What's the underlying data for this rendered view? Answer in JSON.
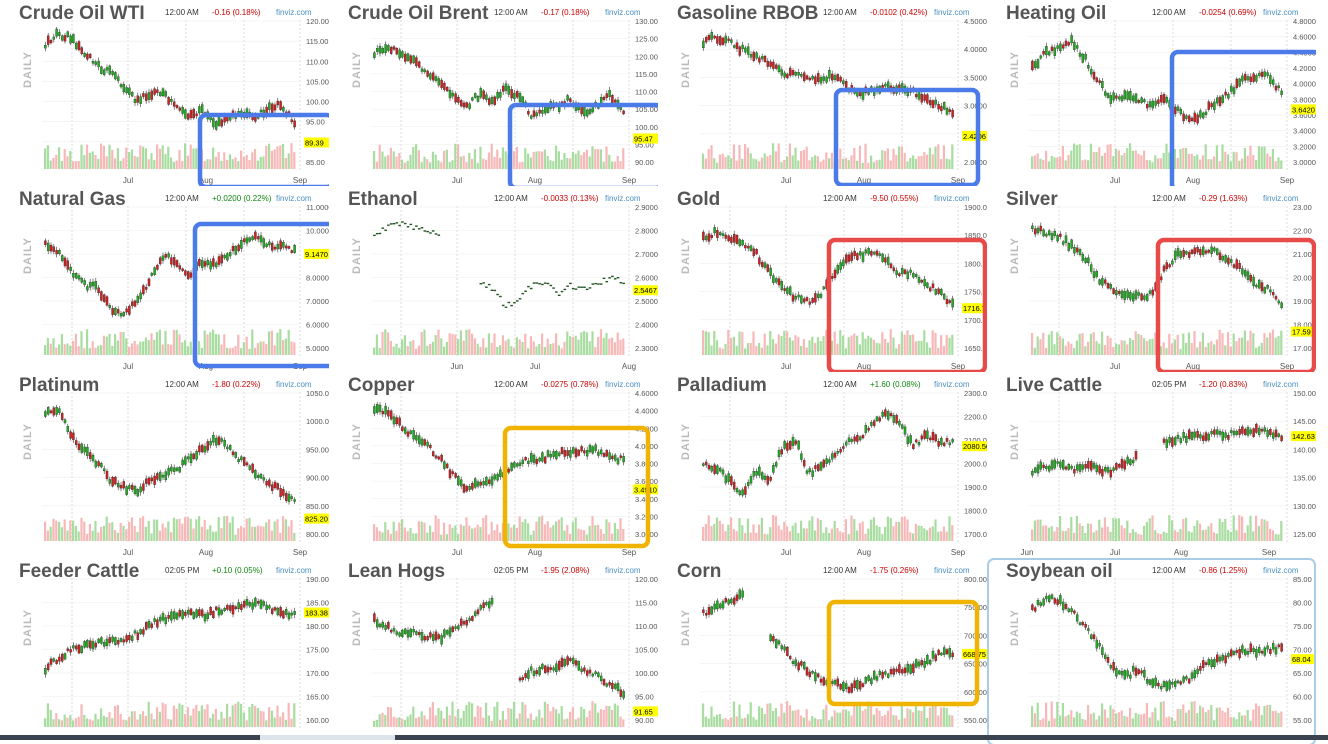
{
  "brand_label": "finviz.com",
  "daily_label": "DAILY",
  "colors": {
    "up": "#22aa22",
    "down": "#cc2222",
    "vol_up": "#a8dca0",
    "vol_down": "#f7b8b8",
    "price_tag": "#ffff00",
    "grid": "#cccccc"
  },
  "panels": [
    {
      "title": "Crude Oil WTI",
      "time": "12:00 AM",
      "change": "-0.16 (0.18%)",
      "dir": "down",
      "yticks": [
        "120.00",
        "115.00",
        "110.00",
        "105.00",
        "100.00",
        "95.00",
        "90.00",
        "85.00"
      ],
      "last": "89.39",
      "xlabels": [
        "Jul",
        "Aug",
        "Sep"
      ],
      "highlight": {
        "color": "#4a7be8"
      },
      "chart_data": {
        "type": "candlestick",
        "ylim": [
          83,
          127
        ],
        "last": 89.39,
        "path": [
          0.15,
          0.05,
          0.09,
          0.21,
          0.33,
          0.39,
          0.52,
          0.63,
          0.57,
          0.58,
          0.67,
          0.78,
          0.71,
          0.84,
          0.78,
          0.72,
          0.79,
          0.69,
          0.67,
          0.84
        ]
      }
    },
    {
      "title": "Crude Oil Brent",
      "time": "12:00 AM",
      "change": "-0.17 (0.18%)",
      "dir": "down",
      "yticks": [
        "130.00",
        "125.00",
        "120.00",
        "115.00",
        "110.00",
        "105.00",
        "100.00",
        "95.00",
        "90.00"
      ],
      "last": "95.47",
      "xlabels": [
        "Jul",
        "Aug",
        "Sep"
      ],
      "highlight": {
        "color": "#4a7be8"
      },
      "chart_data": {
        "type": "candlestick",
        "ylim": [
          88,
          131
        ],
        "last": 95.47,
        "path": [
          0.22,
          0.16,
          0.21,
          0.3,
          0.38,
          0.45,
          0.58,
          0.68,
          0.58,
          0.63,
          0.53,
          0.59,
          0.76,
          0.7,
          0.67,
          0.62,
          0.74,
          0.67,
          0.58,
          0.74
        ]
      }
    },
    {
      "title": "Gasoline RBOB",
      "time": "12:00 AM",
      "change": "-0.0102 (0.42%)",
      "dir": "down",
      "yticks": [
        "4.5000",
        "4.0000",
        "3.5000",
        "3.0000",
        "2.5000",
        "2.0000"
      ],
      "last": "2.4206",
      "xlabels": [
        "Jul",
        "Aug",
        "Sep"
      ],
      "highlight": {
        "color": "#4a7be8"
      },
      "chart_data": {
        "type": "candlestick",
        "ylim": [
          1.9,
          4.6
        ],
        "last": 2.4206,
        "path": [
          0.12,
          0.08,
          0.13,
          0.19,
          0.24,
          0.3,
          0.39,
          0.4,
          0.45,
          0.43,
          0.42,
          0.52,
          0.57,
          0.55,
          0.51,
          0.54,
          0.55,
          0.62,
          0.67,
          0.75
        ]
      }
    },
    {
      "title": "Heating Oil",
      "time": "12:00 AM",
      "change": "-0.0254 (0.69%)",
      "dir": "down",
      "yticks": [
        "4.8000",
        "4.6000",
        "4.4000",
        "4.2000",
        "4.0000",
        "3.8000",
        "3.6000",
        "3.4000",
        "3.2000",
        "3.0000"
      ],
      "last": "3.6420",
      "xlabels": [
        "Jul",
        "Aug",
        "Sep"
      ],
      "highlight": {
        "color": "#4a7be8"
      },
      "chart_data": {
        "type": "candlestick",
        "ylim": [
          2.9,
          4.85
        ],
        "last": 3.642,
        "path": [
          0.35,
          0.22,
          0.18,
          0.12,
          0.26,
          0.46,
          0.63,
          0.58,
          0.62,
          0.67,
          0.63,
          0.7,
          0.81,
          0.75,
          0.64,
          0.57,
          0.46,
          0.42,
          0.4,
          0.57
        ]
      }
    },
    {
      "title": "Natural Gas",
      "time": "12:00 AM",
      "change": "+0.0200 (0.22%)",
      "dir": "up",
      "yticks": [
        "11.0000",
        "10.0000",
        "9.0000",
        "8.0000",
        "7.0000",
        "6.0000",
        "5.0000"
      ],
      "last": "9.1470",
      "xlabels": [
        "Jul",
        "Aug",
        "Sep"
      ],
      "highlight": {
        "color": "#4a7be8"
      },
      "chart_data": {
        "type": "candlestick",
        "ylim": [
          4.9,
          11.2
        ],
        "last": 9.147,
        "path": [
          0.27,
          0.33,
          0.5,
          0.62,
          0.64,
          0.82,
          0.88,
          0.75,
          0.57,
          0.36,
          0.42,
          0.53,
          0.41,
          0.43,
          0.35,
          0.26,
          0.21,
          0.26,
          0.29,
          0.31
        ]
      }
    },
    {
      "title": "Ethanol",
      "time": "12:00 AM",
      "change": "-0.0033 (0.13%)",
      "dir": "down",
      "yticks": [
        "2.9000",
        "2.8000",
        "2.7000",
        "2.6000",
        "2.5000",
        "2.4000",
        "2.3000"
      ],
      "last": "2.5467",
      "xlabels": [
        "Jun",
        "Jul",
        "Aug"
      ],
      "highlight": null,
      "chart_data": {
        "type": "dash",
        "ylim": [
          2.28,
          2.92
        ],
        "last": 2.5467,
        "path": [
          0.2,
          0.12,
          0.08,
          0.12,
          0.16,
          0.18,
          null,
          null,
          0.6,
          0.64,
          0.8,
          0.76,
          0.62,
          0.6,
          0.7,
          0.62,
          0.66,
          0.6,
          0.56,
          0.59
        ]
      }
    },
    {
      "title": "Gold",
      "time": "12:00 AM",
      "change": "-9.50 (0.55%)",
      "dir": "down",
      "yticks": [
        "1900.00",
        "1850.00",
        "1800.00",
        "1750.00",
        "1700.00",
        "1650.00"
      ],
      "last": "1716.70",
      "xlabels": [
        "Jul",
        "Aug",
        "Sep"
      ],
      "highlight": {
        "color": "#e84a4a"
      },
      "chart_data": {
        "type": "candlestick",
        "ylim": [
          1640,
          1905
        ],
        "last": 1716.7,
        "path": [
          0.2,
          0.16,
          0.21,
          0.27,
          0.34,
          0.5,
          0.64,
          0.72,
          0.77,
          0.7,
          0.52,
          0.38,
          0.36,
          0.32,
          0.42,
          0.52,
          0.51,
          0.62,
          0.68,
          0.78
        ]
      }
    },
    {
      "title": "Silver",
      "time": "12:00 AM",
      "change": "-0.29 (1.63%)",
      "dir": "down",
      "yticks": [
        "23.00",
        "22.00",
        "21.00",
        "20.00",
        "19.00",
        "18.00",
        "17.00"
      ],
      "last": "17.59",
      "xlabels": [
        "Jul",
        "Aug",
        "Sep"
      ],
      "highlight": {
        "color": "#e84a4a"
      },
      "chart_data": {
        "type": "candlestick",
        "ylim": [
          16.8,
          23.2
        ],
        "last": 17.59,
        "path": [
          0.12,
          0.16,
          0.2,
          0.28,
          0.38,
          0.56,
          0.65,
          0.7,
          0.72,
          0.7,
          0.5,
          0.36,
          0.34,
          0.3,
          0.33,
          0.42,
          0.48,
          0.6,
          0.66,
          0.8
        ]
      }
    },
    {
      "title": "Platinum",
      "time": "12:00 AM",
      "change": "-1.80 (0.22%)",
      "dir": "down",
      "yticks": [
        "1050.00",
        "1000.00",
        "950.00",
        "900.00",
        "850.00",
        "800.00"
      ],
      "last": "825.20",
      "xlabels": [
        "Jul",
        "Aug",
        "Sep"
      ],
      "highlight": null,
      "chart_data": {
        "type": "candlestick",
        "ylim": [
          795,
          1055
        ],
        "last": 825.2,
        "path": [
          0.12,
          0.1,
          0.3,
          0.45,
          0.55,
          0.7,
          0.76,
          0.8,
          0.7,
          0.66,
          0.6,
          0.52,
          0.42,
          0.34,
          0.4,
          0.54,
          0.63,
          0.72,
          0.8,
          0.88
        ]
      }
    },
    {
      "title": "Copper",
      "time": "12:00 AM",
      "change": "-0.0275 (0.78%)",
      "dir": "down",
      "yticks": [
        "4.6000",
        "4.4000",
        "4.2000",
        "4.0000",
        "3.8000",
        "3.6000",
        "3.4000",
        "3.2000",
        "3.0000"
      ],
      "last": "3.4910",
      "xlabels": [
        "Jul",
        "Aug",
        "Sep"
      ],
      "highlight": {
        "color": "#f0b400"
      },
      "chart_data": {
        "type": "candlestick",
        "ylim": [
          2.95,
          4.62
        ],
        "last": 3.491,
        "path": [
          0.08,
          0.12,
          0.22,
          0.32,
          0.4,
          0.5,
          0.66,
          0.76,
          0.72,
          0.68,
          0.62,
          0.54,
          0.52,
          0.5,
          0.46,
          0.46,
          0.44,
          0.44,
          0.5,
          0.52
        ]
      }
    },
    {
      "title": "Palladium",
      "time": "12:00 AM",
      "change": "+1.60 (0.08%)",
      "dir": "up",
      "yticks": [
        "2300.00",
        "2200.00",
        "2100.00",
        "2000.00",
        "1900.00",
        "1800.00",
        "1700.00"
      ],
      "last": "2080.50",
      "xlabels": [
        "Jul",
        "Aug",
        "Sep"
      ],
      "highlight": null,
      "chart_data": {
        "type": "candlestick",
        "ylim": [
          1690,
          2310
        ],
        "last": 2080.5,
        "path": [
          0.55,
          0.6,
          0.7,
          0.82,
          0.62,
          0.7,
          0.42,
          0.34,
          0.64,
          0.58,
          0.48,
          0.36,
          0.32,
          0.18,
          0.1,
          0.22,
          0.4,
          0.3,
          0.36,
          0.36
        ]
      }
    },
    {
      "title": "Live Cattle",
      "time": "02:05 PM",
      "change": "-1.20 (0.83%)",
      "dir": "down",
      "yticks": [
        "150.00",
        "145.00",
        "140.00",
        "135.00",
        "130.00",
        "125.00"
      ],
      "last": "142.63",
      "xlabels": [
        "Jun",
        "Jul",
        "Aug",
        "Sep"
      ],
      "highlight": null,
      "chart_data": {
        "type": "candlestick",
        "ylim": [
          123,
          151
        ],
        "last": 142.63,
        "path": [
          0.62,
          0.58,
          0.55,
          0.6,
          0.58,
          0.6,
          0.62,
          0.55,
          0.5,
          null,
          0.36,
          0.34,
          0.32,
          0.32,
          0.28,
          0.3,
          0.28,
          0.26,
          0.29,
          0.31
        ]
      }
    },
    {
      "title": "Feeder Cattle",
      "time": "02:05 PM",
      "change": "+0.10 (0.05%)",
      "dir": "up",
      "yticks": [
        "190.00",
        "185.00",
        "180.00",
        "175.00",
        "170.00",
        "165.00",
        "160.00"
      ],
      "last": "183.38",
      "xlabels": [],
      "highlight": null,
      "chart_data": {
        "type": "candlestick",
        "ylim": [
          158,
          191
        ],
        "last": 183.38,
        "path": [
          0.72,
          0.62,
          0.56,
          0.52,
          0.5,
          0.48,
          0.46,
          0.42,
          0.34,
          0.28,
          0.26,
          0.24,
          0.26,
          0.22,
          0.2,
          0.18,
          0.14,
          0.18,
          0.24,
          0.24
        ]
      }
    },
    {
      "title": "Lean Hogs",
      "time": "02:05 PM",
      "change": "-1.95 (2.08%)",
      "dir": "down",
      "yticks": [
        "120.00",
        "115.00",
        "110.00",
        "105.00",
        "100.00",
        "95.00",
        "90.00"
      ],
      "last": "91.65",
      "xlabels": [],
      "highlight": null,
      "chart_data": {
        "type": "candlestick",
        "ylim": [
          89.5,
          121
        ],
        "last": 91.65,
        "path": [
          0.3,
          0.36,
          0.42,
          0.4,
          0.44,
          0.46,
          0.36,
          0.3,
          0.22,
          0.12,
          null,
          0.8,
          0.74,
          0.72,
          0.7,
          0.66,
          0.72,
          0.78,
          0.86,
          0.92
        ]
      }
    },
    {
      "title": "Corn",
      "time": "12:00 AM",
      "change": "-1.75 (0.26%)",
      "dir": "down",
      "yticks": [
        "800.00",
        "750.00",
        "700.00",
        "650.00",
        "600.00",
        "550.00"
      ],
      "last": "668.75",
      "xlabels": [],
      "highlight": {
        "color": "#f0b400"
      },
      "chart_data": {
        "type": "candlestick",
        "ylim": [
          545,
          805
        ],
        "last": 668.75,
        "path": [
          0.24,
          0.18,
          0.12,
          0.08,
          null,
          0.42,
          0.54,
          0.66,
          0.74,
          0.8,
          0.84,
          0.9,
          0.86,
          0.8,
          0.76,
          0.74,
          0.7,
          0.66,
          0.58,
          0.6
        ]
      }
    },
    {
      "title": "Soybean oil",
      "time": "12:00 AM",
      "change": "-0.86 (1.25%)",
      "dir": "down",
      "yticks": [
        "85.00",
        "80.00",
        "75.00",
        "70.00",
        "65.00",
        "60.00",
        "55.00"
      ],
      "last": "68.04",
      "xlabels": [],
      "highlight": {
        "color": "#a9cde6"
      },
      "chart_data": {
        "type": "candlestick",
        "ylim": [
          54,
          86
        ],
        "last": 68.04,
        "path": [
          0.2,
          0.1,
          0.12,
          0.22,
          0.36,
          0.5,
          0.7,
          0.8,
          0.72,
          0.84,
          0.88,
          0.84,
          0.8,
          0.7,
          0.66,
          0.6,
          0.56,
          0.56,
          0.55,
          0.54
        ]
      }
    }
  ]
}
